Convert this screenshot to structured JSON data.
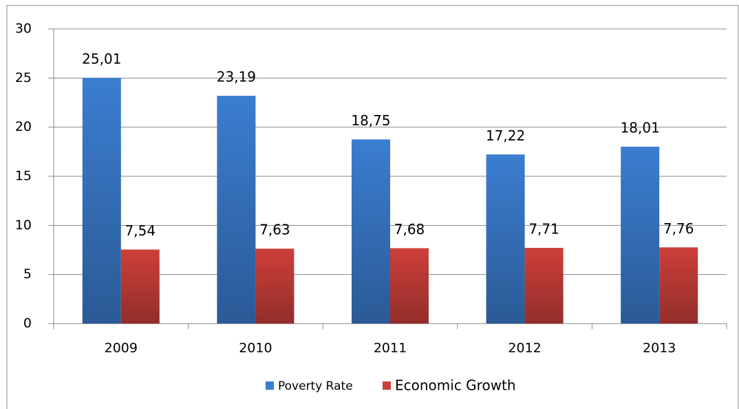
{
  "chart_data": {
    "type": "bar",
    "categories": [
      "2009",
      "2010",
      "2011",
      "2012",
      "2013"
    ],
    "series": [
      {
        "name": "Poverty Rate",
        "color": "#3b7dd0",
        "values": [
          25.01,
          23.19,
          18.75,
          17.22,
          18.01
        ],
        "value_labels": [
          "25,01",
          "23,19",
          "18,75",
          "17,22",
          "18,01"
        ]
      },
      {
        "name": "Economic Growth",
        "color": "#cc3f3a",
        "values": [
          7.54,
          7.63,
          7.68,
          7.71,
          7.76
        ],
        "value_labels": [
          "7,54",
          "7,63",
          "7,68",
          "7,71",
          "7,76"
        ]
      }
    ],
    "ylim": [
      0,
      30
    ],
    "yticks": [
      0,
      5,
      10,
      15,
      20,
      25,
      30
    ],
    "grid": true,
    "legend": "bottom"
  }
}
